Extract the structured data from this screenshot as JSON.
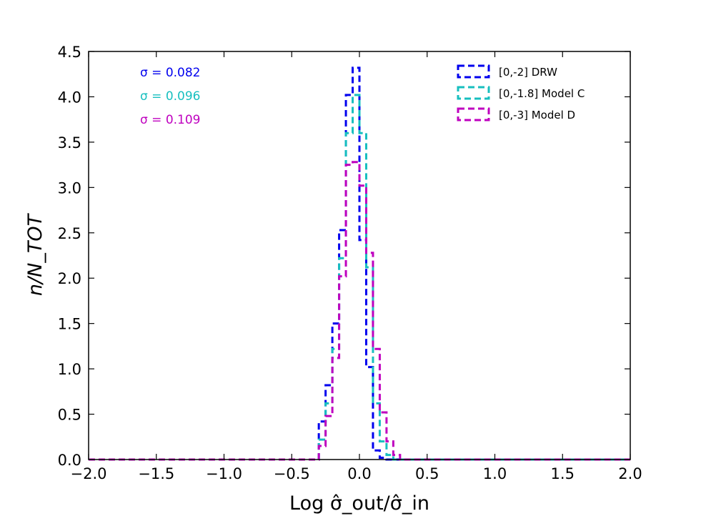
{
  "chart_data": {
    "type": "histogram-step",
    "title": "",
    "xlabel": "Log σ̂_out/σ̂_in",
    "ylabel": "n/N_TOT",
    "xlim": [
      -2.0,
      2.0
    ],
    "ylim": [
      0.0,
      4.5
    ],
    "x_ticks": [
      "−2.0",
      "−1.5",
      "−1.0",
      "−0.5",
      "0.0",
      "0.5",
      "1.0",
      "1.5",
      "2.0"
    ],
    "y_ticks": [
      "0.0",
      "0.5",
      "1.0",
      "1.5",
      "2.0",
      "2.5",
      "3.0",
      "3.5",
      "4.0",
      "4.5"
    ],
    "bin_edges": [
      -2.0,
      -0.3,
      -0.25,
      -0.2,
      -0.15,
      -0.1,
      -0.05,
      0.0,
      0.05,
      0.1,
      0.15,
      0.2,
      0.25,
      0.3,
      2.0
    ],
    "series": [
      {
        "name": "[0,-2] DRW",
        "color": "#0000ee",
        "sigma": "σ = 0.082",
        "values": [
          0.0,
          0.42,
          0.82,
          1.5,
          2.53,
          4.02,
          4.32,
          2.42,
          1.02,
          0.1,
          0.02,
          0.0,
          0.0,
          0.0
        ]
      },
      {
        "name": "[0,-1.8] Model C",
        "color": "#17bfbf",
        "sigma": "σ = 0.096",
        "values": [
          0.0,
          0.22,
          0.62,
          1.22,
          2.22,
          3.6,
          4.02,
          3.6,
          2.12,
          0.62,
          0.2,
          0.05,
          0.0,
          0.0
        ]
      },
      {
        "name": "[0,-3] Model D",
        "color": "#bf00bf",
        "sigma": "σ = 0.109",
        "values": [
          0.0,
          0.15,
          0.48,
          1.12,
          2.02,
          3.25,
          3.28,
          3.02,
          2.28,
          1.22,
          0.52,
          0.2,
          0.05,
          0.0
        ]
      }
    ],
    "legend_position": "top-right",
    "annotations_position": "top-left"
  }
}
